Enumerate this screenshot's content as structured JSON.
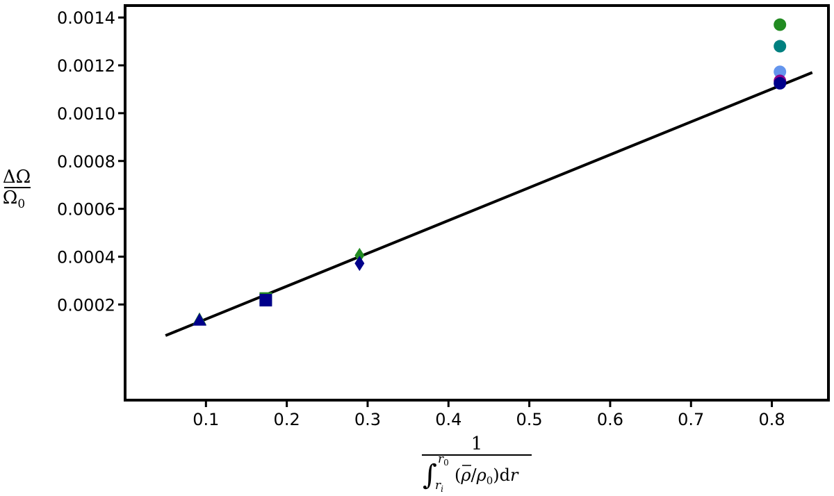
{
  "chart_data": {
    "type": "scatter",
    "xlabel": {
      "numerator": "1",
      "integral": "∫",
      "upper_limit": "r",
      "upper_limit_sub": "0",
      "lower_limit": "r",
      "lower_limit_sub": "i",
      "integrand_open": "(",
      "integrand_rho_bar": "ρ",
      "integrand_slash": "/",
      "integrand_rho": "ρ",
      "integrand_rho_sub": "0",
      "integrand_close": ")d",
      "integrand_var": "r"
    },
    "ylabel": {
      "numerator": "ΔΩ",
      "denominator": "Ω",
      "denominator_sub": "0"
    },
    "xlim": [
      0.0,
      0.87
    ],
    "ylim": [
      -0.0002,
      0.00145
    ],
    "x_ticks": [
      0.1,
      0.2,
      0.3,
      0.4,
      0.5,
      0.6,
      0.7,
      0.8
    ],
    "x_tick_labels": [
      "0.1",
      "0.2",
      "0.3",
      "0.4",
      "0.5",
      "0.6",
      "0.7",
      "0.8"
    ],
    "y_ticks": [
      0.0002,
      0.0004,
      0.0006,
      0.0008,
      0.001,
      0.0012,
      0.0014
    ],
    "y_tick_labels": [
      "0.0002",
      "0.0004",
      "0.0006",
      "0.0008",
      "0.0010",
      "0.0012",
      "0.0014"
    ],
    "grid": false,
    "fit_line": {
      "x": [
        0.05,
        0.85
      ],
      "y": [
        7e-05,
        0.00117
      ],
      "color": "#000000"
    },
    "points": [
      {
        "x": 0.092,
        "y": 0.000135,
        "marker": "triangle",
        "color": "#228b22"
      },
      {
        "x": 0.092,
        "y": 0.000132,
        "marker": "triangle",
        "color": "#00008b"
      },
      {
        "x": 0.174,
        "y": 0.000225,
        "marker": "square",
        "color": "#228b22"
      },
      {
        "x": 0.174,
        "y": 0.000218,
        "marker": "square",
        "color": "#00008b"
      },
      {
        "x": 0.29,
        "y": 0.000405,
        "marker": "diamond",
        "color": "#228b22"
      },
      {
        "x": 0.29,
        "y": 0.000372,
        "marker": "diamond",
        "color": "#00008b"
      },
      {
        "x": 0.81,
        "y": 0.00137,
        "marker": "circle",
        "color": "#228b22"
      },
      {
        "x": 0.81,
        "y": 0.00128,
        "marker": "circle",
        "color": "#008080"
      },
      {
        "x": 0.81,
        "y": 0.001173,
        "marker": "circle",
        "color": "#6495ed"
      },
      {
        "x": 0.81,
        "y": 0.001135,
        "marker": "circle",
        "color": "#8b008b"
      },
      {
        "x": 0.81,
        "y": 0.001125,
        "marker": "circle",
        "color": "#00008b"
      }
    ]
  }
}
